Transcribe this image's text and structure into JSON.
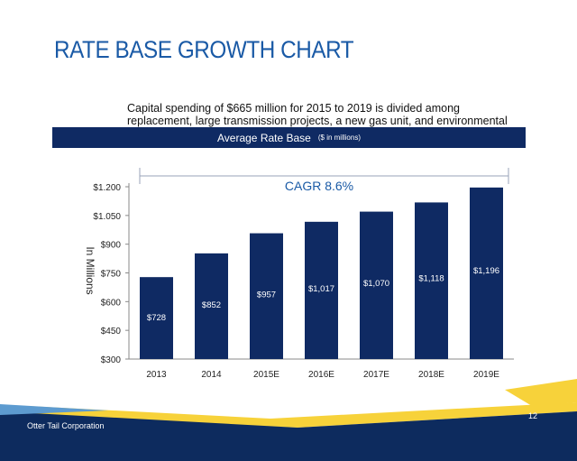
{
  "slide": {
    "title": "RATE BASE GROWTH CHART",
    "subtitle": "Capital spending of $665 million for 2015 to 2019 is divided among replacement, large transmission projects, a new gas unit, and environmental upgrades.",
    "band_label": "Average Rate Base",
    "band_units": "($ in millions)",
    "footer_company": "Otter Tail Corporation",
    "page_number": "12"
  },
  "colors": {
    "title": "#1a5aa6",
    "band": "#0f2a63",
    "bar": "#0f2a63",
    "cagr": "#1a5aa6",
    "footer_navy": "#0d2b5e",
    "footer_yellow": "#f7d23a",
    "footer_blue": "#5d9bd0"
  },
  "chart_data": {
    "type": "bar",
    "categories": [
      "2013",
      "2014",
      "2015E",
      "2016E",
      "2017E",
      "2018E",
      "2019E"
    ],
    "values": [
      728,
      852,
      957,
      1017,
      1070,
      1118,
      1196
    ],
    "data_labels": [
      "$728",
      "$852",
      "$957",
      "$1,017",
      "$1,070",
      "$1,118",
      "$1,196"
    ],
    "ylabel": "In Millions",
    "ylim": [
      300,
      1200
    ],
    "yticks": [
      300,
      450,
      600,
      750,
      900,
      1050,
      1200
    ],
    "ytick_labels": [
      "$300",
      "$450",
      "$600",
      "$750",
      "$900",
      "$1.050",
      "$1.200"
    ],
    "annotation": "CAGR 8.6%",
    "grid": false,
    "legend": "none"
  }
}
